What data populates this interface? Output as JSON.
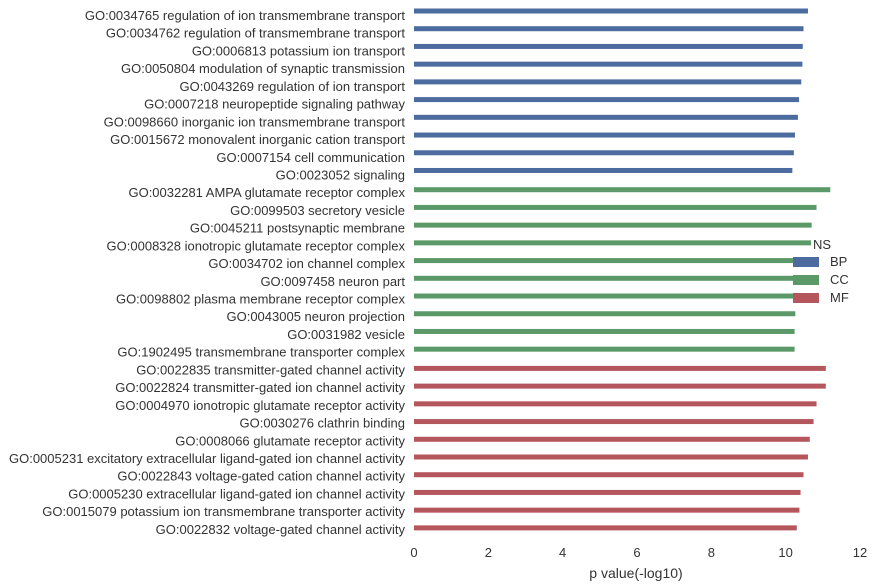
{
  "chart_data": {
    "type": "bar",
    "orientation": "horizontal",
    "xlabel": "p value(-log10)",
    "xlim": [
      0,
      12
    ],
    "xticks": [
      0,
      2,
      4,
      6,
      8,
      10,
      12
    ],
    "grid": false,
    "legend": {
      "title": "NS",
      "placement": "right",
      "entries": [
        {
          "name": "BP",
          "color": "#4c6b9f"
        },
        {
          "name": "CC",
          "color": "#5b9a68"
        },
        {
          "name": "MF",
          "color": "#b5555c"
        }
      ]
    },
    "categories": [
      "GO:0034765 regulation of ion transmembrane transport",
      "GO:0034762 regulation of transmembrane transport",
      "GO:0006813 potassium ion transport",
      "GO:0050804 modulation of synaptic transmission",
      "GO:0043269 regulation of ion transport",
      "GO:0007218 neuropeptide signaling pathway",
      "GO:0098660 inorganic ion transmembrane transport",
      "GO:0015672 monovalent inorganic cation transport",
      "GO:0007154 cell communication",
      "GO:0023052 signaling",
      "GO:0032281 AMPA glutamate receptor complex",
      "GO:0099503 secretory vesicle",
      "GO:0045211 postsynaptic membrane",
      "GO:0008328 ionotropic glutamate receptor complex",
      "GO:0034702 ion channel complex",
      "GO:0097458 neuron part",
      "GO:0098802 plasma membrane receptor complex",
      "GO:0043005 neuron projection",
      "GO:0031982 vesicle",
      "GO:1902495 transmembrane transporter complex",
      "GO:0022835 transmitter-gated channel activity",
      "GO:0022824 transmitter-gated ion channel activity",
      "GO:0004970 ionotropic glutamate receptor activity",
      "GO:0030276 clathrin binding",
      "GO:0008066 glutamate receptor activity",
      "GO:0005231 excitatory extracellular ligand-gated ion channel activity",
      "GO:0022843 voltage-gated cation channel activity",
      "GO:0005230 extracellular ligand-gated ion channel activity",
      "GO:0015079 potassium ion transmembrane transporter activity",
      "GO:0022832 voltage-gated channel activity"
    ],
    "values": [
      10.6,
      10.48,
      10.46,
      10.45,
      10.42,
      10.36,
      10.33,
      10.25,
      10.22,
      10.18,
      11.2,
      10.83,
      10.7,
      10.68,
      10.25,
      10.22,
      10.22,
      10.26,
      10.24,
      10.24,
      11.08,
      11.08,
      10.83,
      10.75,
      10.65,
      10.6,
      10.48,
      10.4,
      10.37,
      10.3
    ],
    "groups": [
      "BP",
      "BP",
      "BP",
      "BP",
      "BP",
      "BP",
      "BP",
      "BP",
      "BP",
      "BP",
      "CC",
      "CC",
      "CC",
      "CC",
      "CC",
      "CC",
      "CC",
      "CC",
      "CC",
      "CC",
      "MF",
      "MF",
      "MF",
      "MF",
      "MF",
      "MF",
      "MF",
      "MF",
      "MF",
      "MF"
    ]
  }
}
